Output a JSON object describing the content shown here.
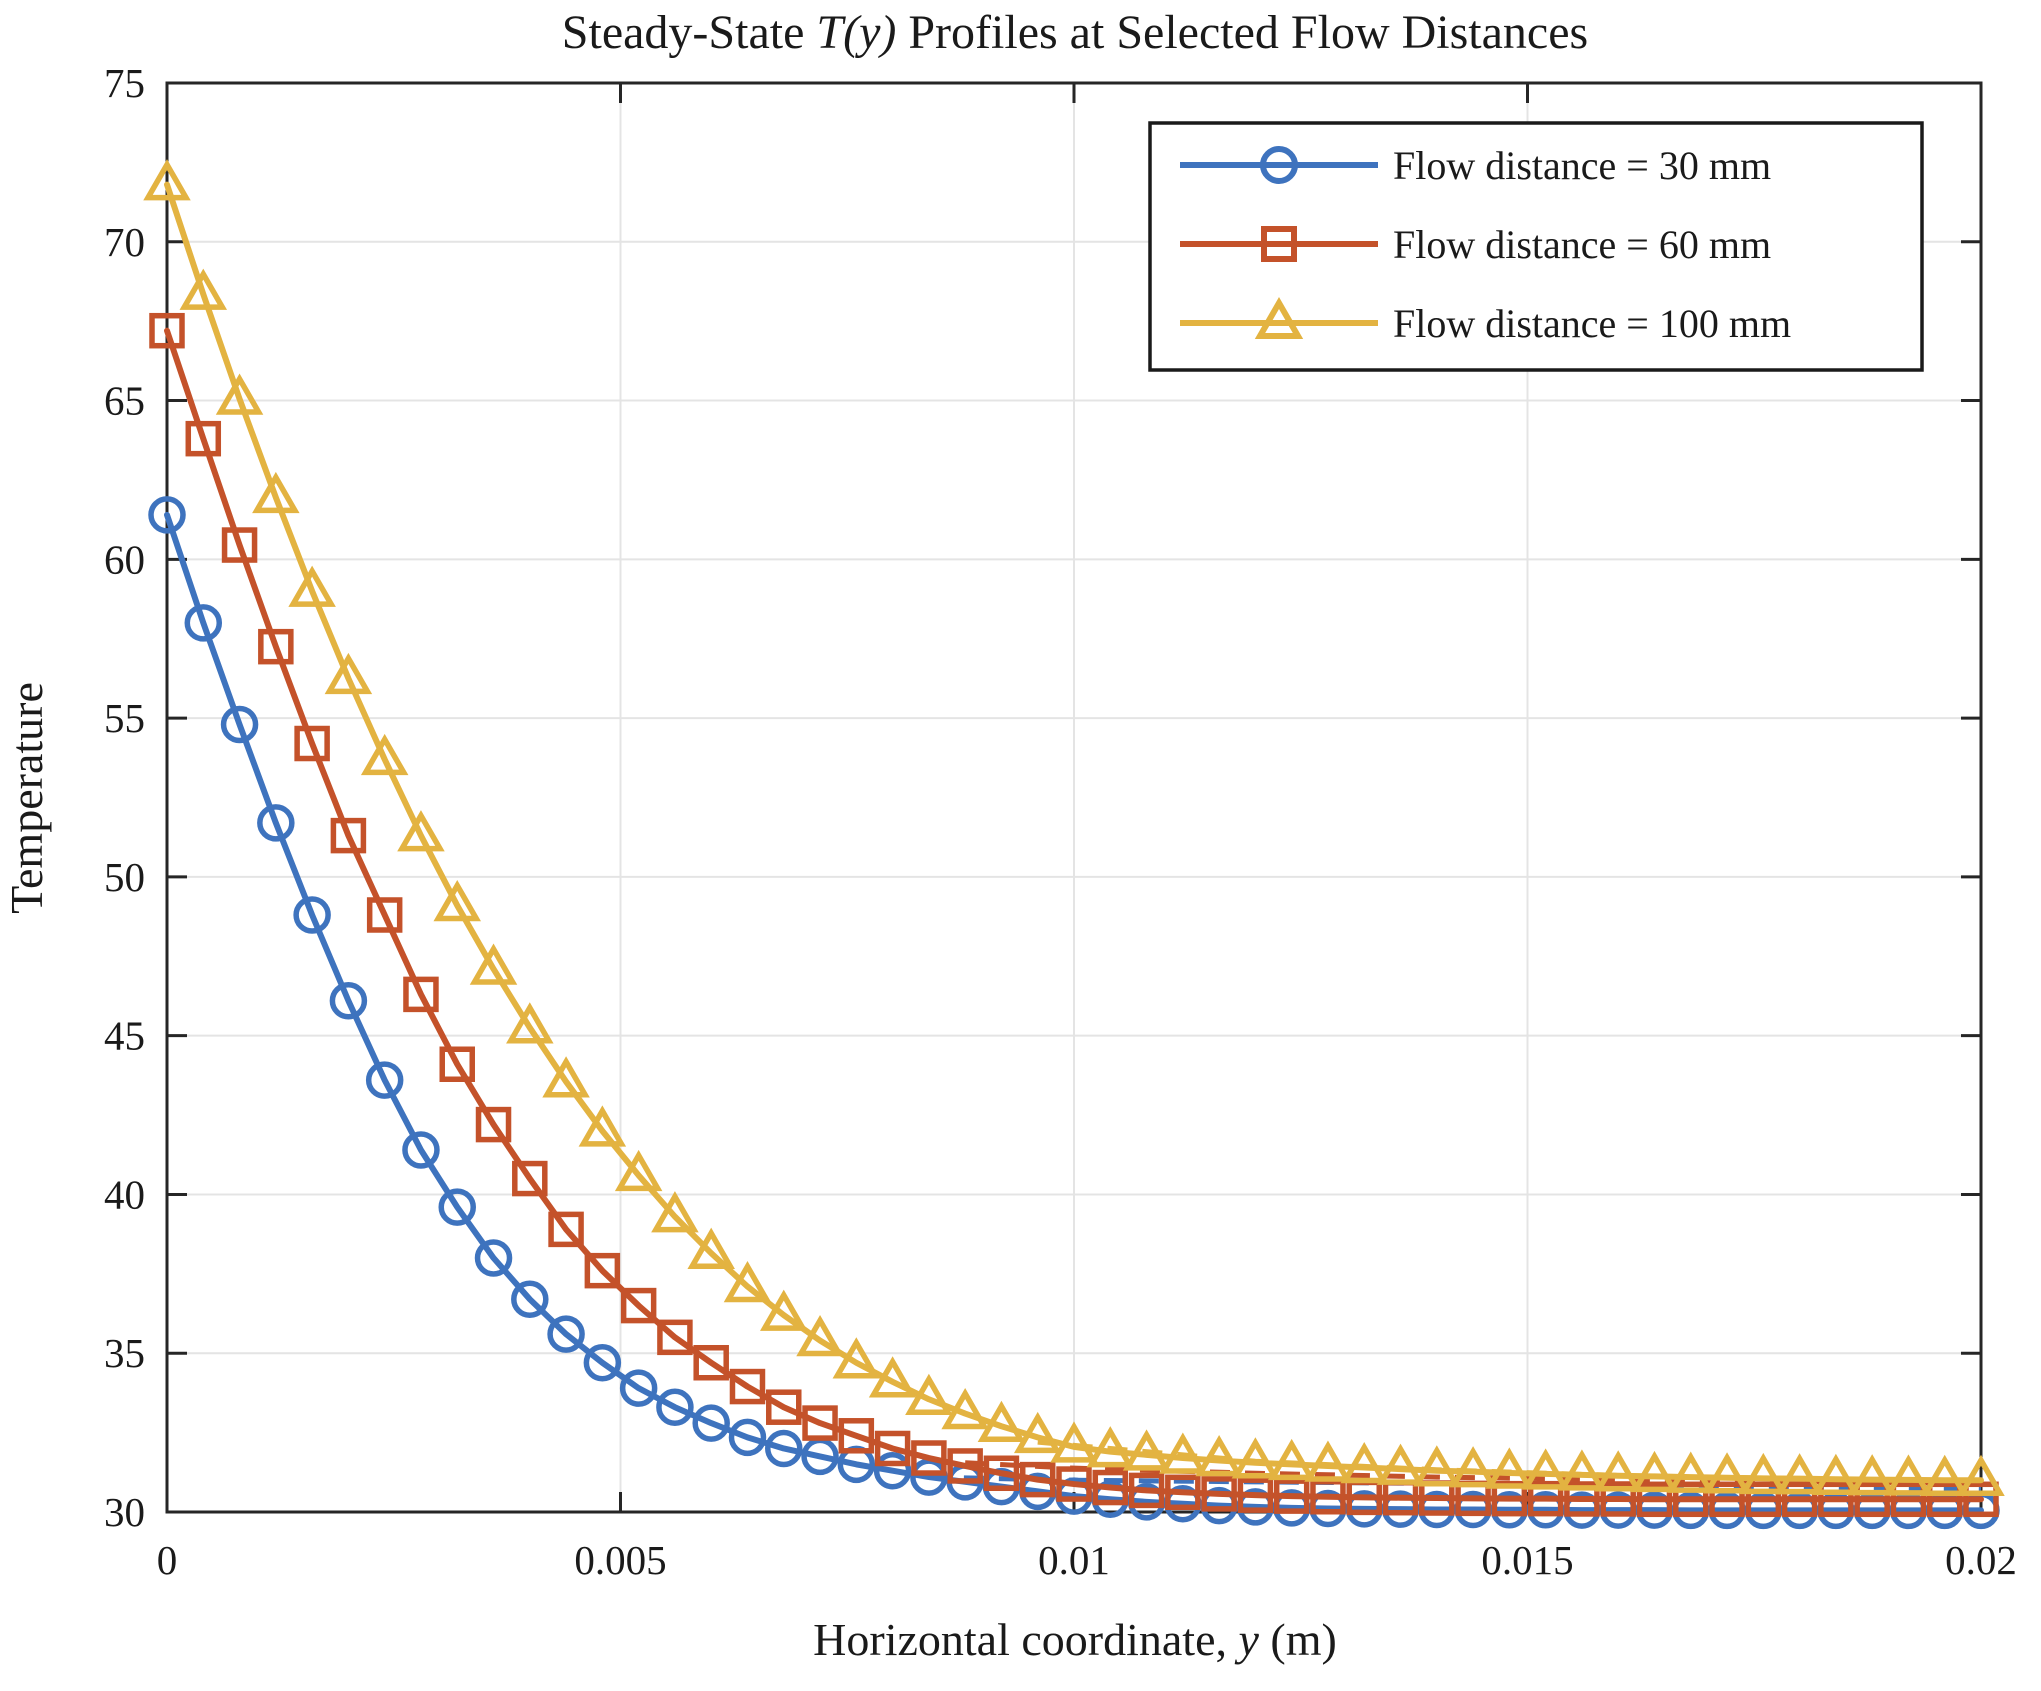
{
  "figure": {
    "title": {
      "pre": "Steady-State ",
      "math": "T(y)",
      "post": " Profiles at Selected Flow Distances"
    },
    "xlabel": {
      "pre": "Horizontal coordinate, ",
      "math": "y",
      "post": " (m)"
    },
    "ylabel": "Temperature",
    "colors": {
      "axis": "#262626",
      "grid": "#E4E4E4",
      "background": "#FFFFFF",
      "text": "#1A1A1A",
      "legend_border": "#1A1A1A"
    }
  },
  "chart_data": {
    "type": "line",
    "title": "Steady-State T(y) Profiles at Selected Flow Distances",
    "xlabel": "Horizontal coordinate, y (m)",
    "ylabel": "Temperature",
    "xlim": [
      0,
      0.02
    ],
    "ylim": [
      30,
      75
    ],
    "grid": true,
    "legend_position": "top-right",
    "x_ticks": {
      "values": [
        0,
        0.005,
        0.01,
        0.015,
        0.02
      ],
      "labels": [
        "0",
        "0.005",
        "0.01",
        "0.015",
        "0.02"
      ]
    },
    "y_ticks": {
      "values": [
        30,
        35,
        40,
        45,
        50,
        55,
        60,
        65,
        70,
        75
      ],
      "labels": [
        "30",
        "35",
        "40",
        "45",
        "50",
        "55",
        "60",
        "65",
        "70",
        "75"
      ]
    },
    "x": [
      0,
      0.0004,
      0.0008,
      0.0012,
      0.0016,
      0.002,
      0.0024,
      0.0028,
      0.0032,
      0.0036,
      0.004,
      0.0044,
      0.0048,
      0.0052,
      0.0056,
      0.006,
      0.0064,
      0.0068,
      0.0072,
      0.0076,
      0.008,
      0.0084,
      0.0088,
      0.0092,
      0.0096,
      0.01,
      0.0104,
      0.0108,
      0.0112,
      0.0116,
      0.012,
      0.0124,
      0.0128,
      0.0132,
      0.0136,
      0.014,
      0.0144,
      0.0148,
      0.0152,
      0.0156,
      0.016,
      0.0164,
      0.0168,
      0.0172,
      0.0176,
      0.018,
      0.0184,
      0.0188,
      0.0192,
      0.0196,
      0.02
    ],
    "series": [
      {
        "name": "flow-distance-30mm",
        "label": "Flow distance = 30 mm",
        "color": "#3E73BE",
        "marker": "circle",
        "line_style": "solid",
        "values": [
          61.4,
          58.0,
          54.8,
          51.7,
          48.8,
          46.1,
          43.6,
          41.4,
          39.6,
          38.0,
          36.7,
          35.6,
          34.7,
          33.9,
          33.3,
          32.8,
          32.35,
          32.0,
          31.75,
          31.5,
          31.3,
          31.1,
          30.95,
          30.8,
          30.65,
          30.5,
          30.4,
          30.32,
          30.26,
          30.2,
          30.16,
          30.13,
          30.11,
          30.1,
          30.09,
          30.08,
          30.08,
          30.07,
          30.07,
          30.06,
          30.06,
          30.06,
          30.05,
          30.05,
          30.05,
          30.05,
          30.05,
          30.05,
          30.05,
          30.05,
          30.05
        ]
      },
      {
        "name": "flow-distance-60mm",
        "label": "Flow distance = 60 mm",
        "color": "#C4522A",
        "marker": "square",
        "line_style": "solid",
        "values": [
          67.2,
          63.8,
          60.45,
          57.25,
          54.2,
          51.3,
          48.8,
          46.3,
          44.1,
          42.2,
          40.5,
          38.9,
          37.6,
          36.5,
          35.5,
          34.7,
          33.95,
          33.3,
          32.8,
          32.4,
          32.0,
          31.7,
          31.45,
          31.22,
          31.02,
          30.88,
          30.77,
          30.68,
          30.62,
          30.57,
          30.53,
          30.5,
          30.48,
          30.46,
          30.45,
          30.44,
          30.43,
          30.42,
          30.42,
          30.41,
          30.41,
          30.4,
          30.4,
          30.4,
          30.4,
          30.4,
          30.4,
          30.4,
          30.4,
          30.4,
          30.4
        ]
      },
      {
        "name": "flow-distance-100mm",
        "label": "Flow distance = 100 mm",
        "color": "#E3B341",
        "marker": "triangle",
        "line_style": "solid",
        "values": [
          71.8,
          68.35,
          65.05,
          61.95,
          59.0,
          56.25,
          53.7,
          51.3,
          49.1,
          47.1,
          45.25,
          43.55,
          42.0,
          40.6,
          39.3,
          38.15,
          37.1,
          36.2,
          35.4,
          34.7,
          34.1,
          33.55,
          33.1,
          32.7,
          32.35,
          32.05,
          31.9,
          31.8,
          31.7,
          31.62,
          31.55,
          31.5,
          31.45,
          31.4,
          31.35,
          31.3,
          31.27,
          31.23,
          31.2,
          31.17,
          31.14,
          31.12,
          31.1,
          31.08,
          31.06,
          31.05,
          31.03,
          31.02,
          31.01,
          31.0,
          31.0
        ]
      }
    ],
    "dashed_overlays": [
      {
        "series": "flow-distance-30mm",
        "color": "#3E73BE",
        "line_style": "dashed",
        "x": [
          0.0084,
          0.01,
          0.012,
          0.014,
          0.016,
          0.018,
          0.02
        ],
        "values": [
          31.1,
          31.0,
          30.95,
          30.9,
          30.84,
          30.78,
          30.72
        ]
      },
      {
        "series": "flow-distance-60mm",
        "color": "#C4522A",
        "line_style": "dashed",
        "x": [
          0.0088,
          0.01,
          0.012,
          0.014,
          0.016,
          0.018,
          0.02
        ],
        "values": [
          31.55,
          31.38,
          31.22,
          31.1,
          31.02,
          30.96,
          30.9
        ]
      },
      {
        "series": "flow-distance-100mm",
        "color": "#E3B341",
        "line_style": "dashed",
        "x": [
          0.0096,
          0.011,
          0.012,
          0.014,
          0.016,
          0.018,
          0.02
        ],
        "values": [
          32.2,
          31.85,
          31.6,
          31.33,
          31.15,
          31.05,
          30.98
        ]
      }
    ]
  }
}
